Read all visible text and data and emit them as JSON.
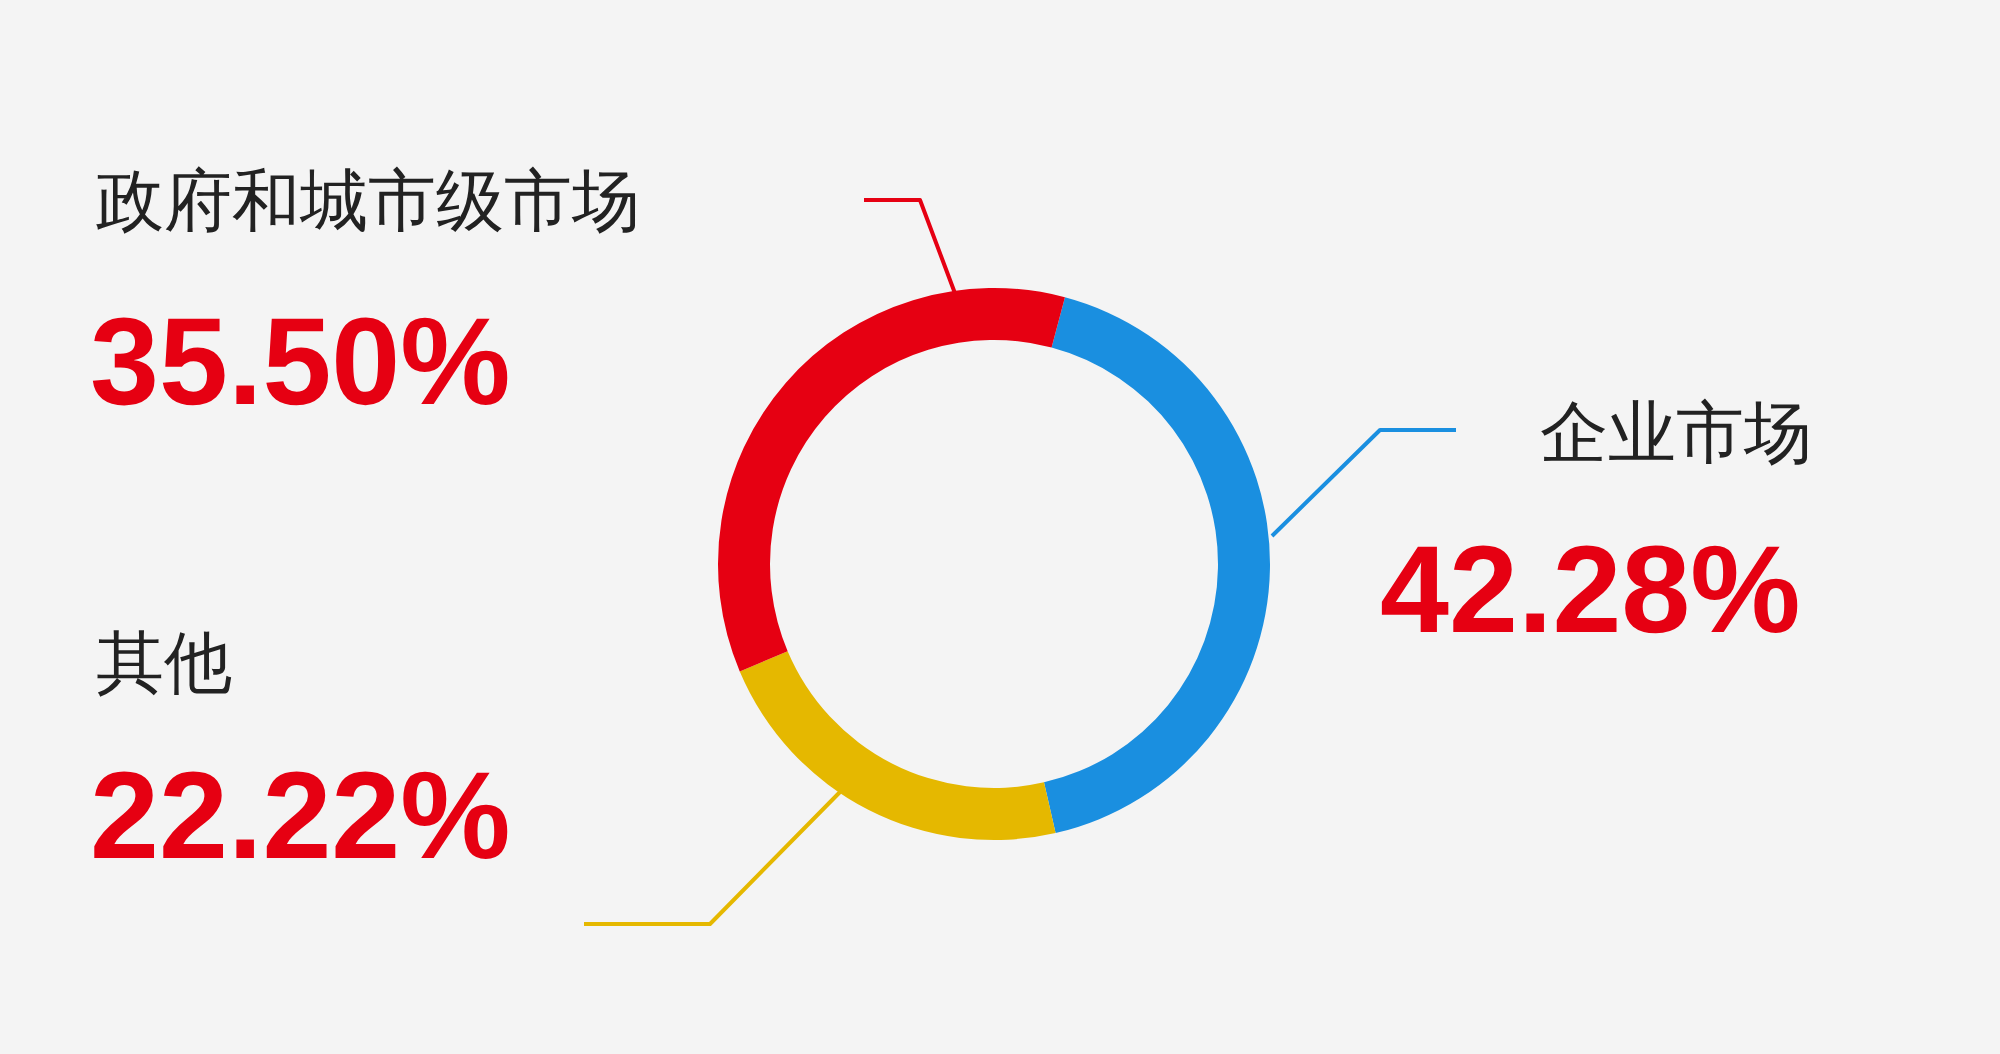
{
  "chart_data": {
    "type": "donut",
    "categories": [
      "企业市场",
      "其他",
      "政府和城市级市场"
    ],
    "values": [
      42.28,
      22.22,
      35.5
    ],
    "colors": [
      "#1a8fe0",
      "#e5b800",
      "#e60012"
    ],
    "value_labels": [
      "42.28%",
      "22.22%",
      "35.50%"
    ]
  }
}
